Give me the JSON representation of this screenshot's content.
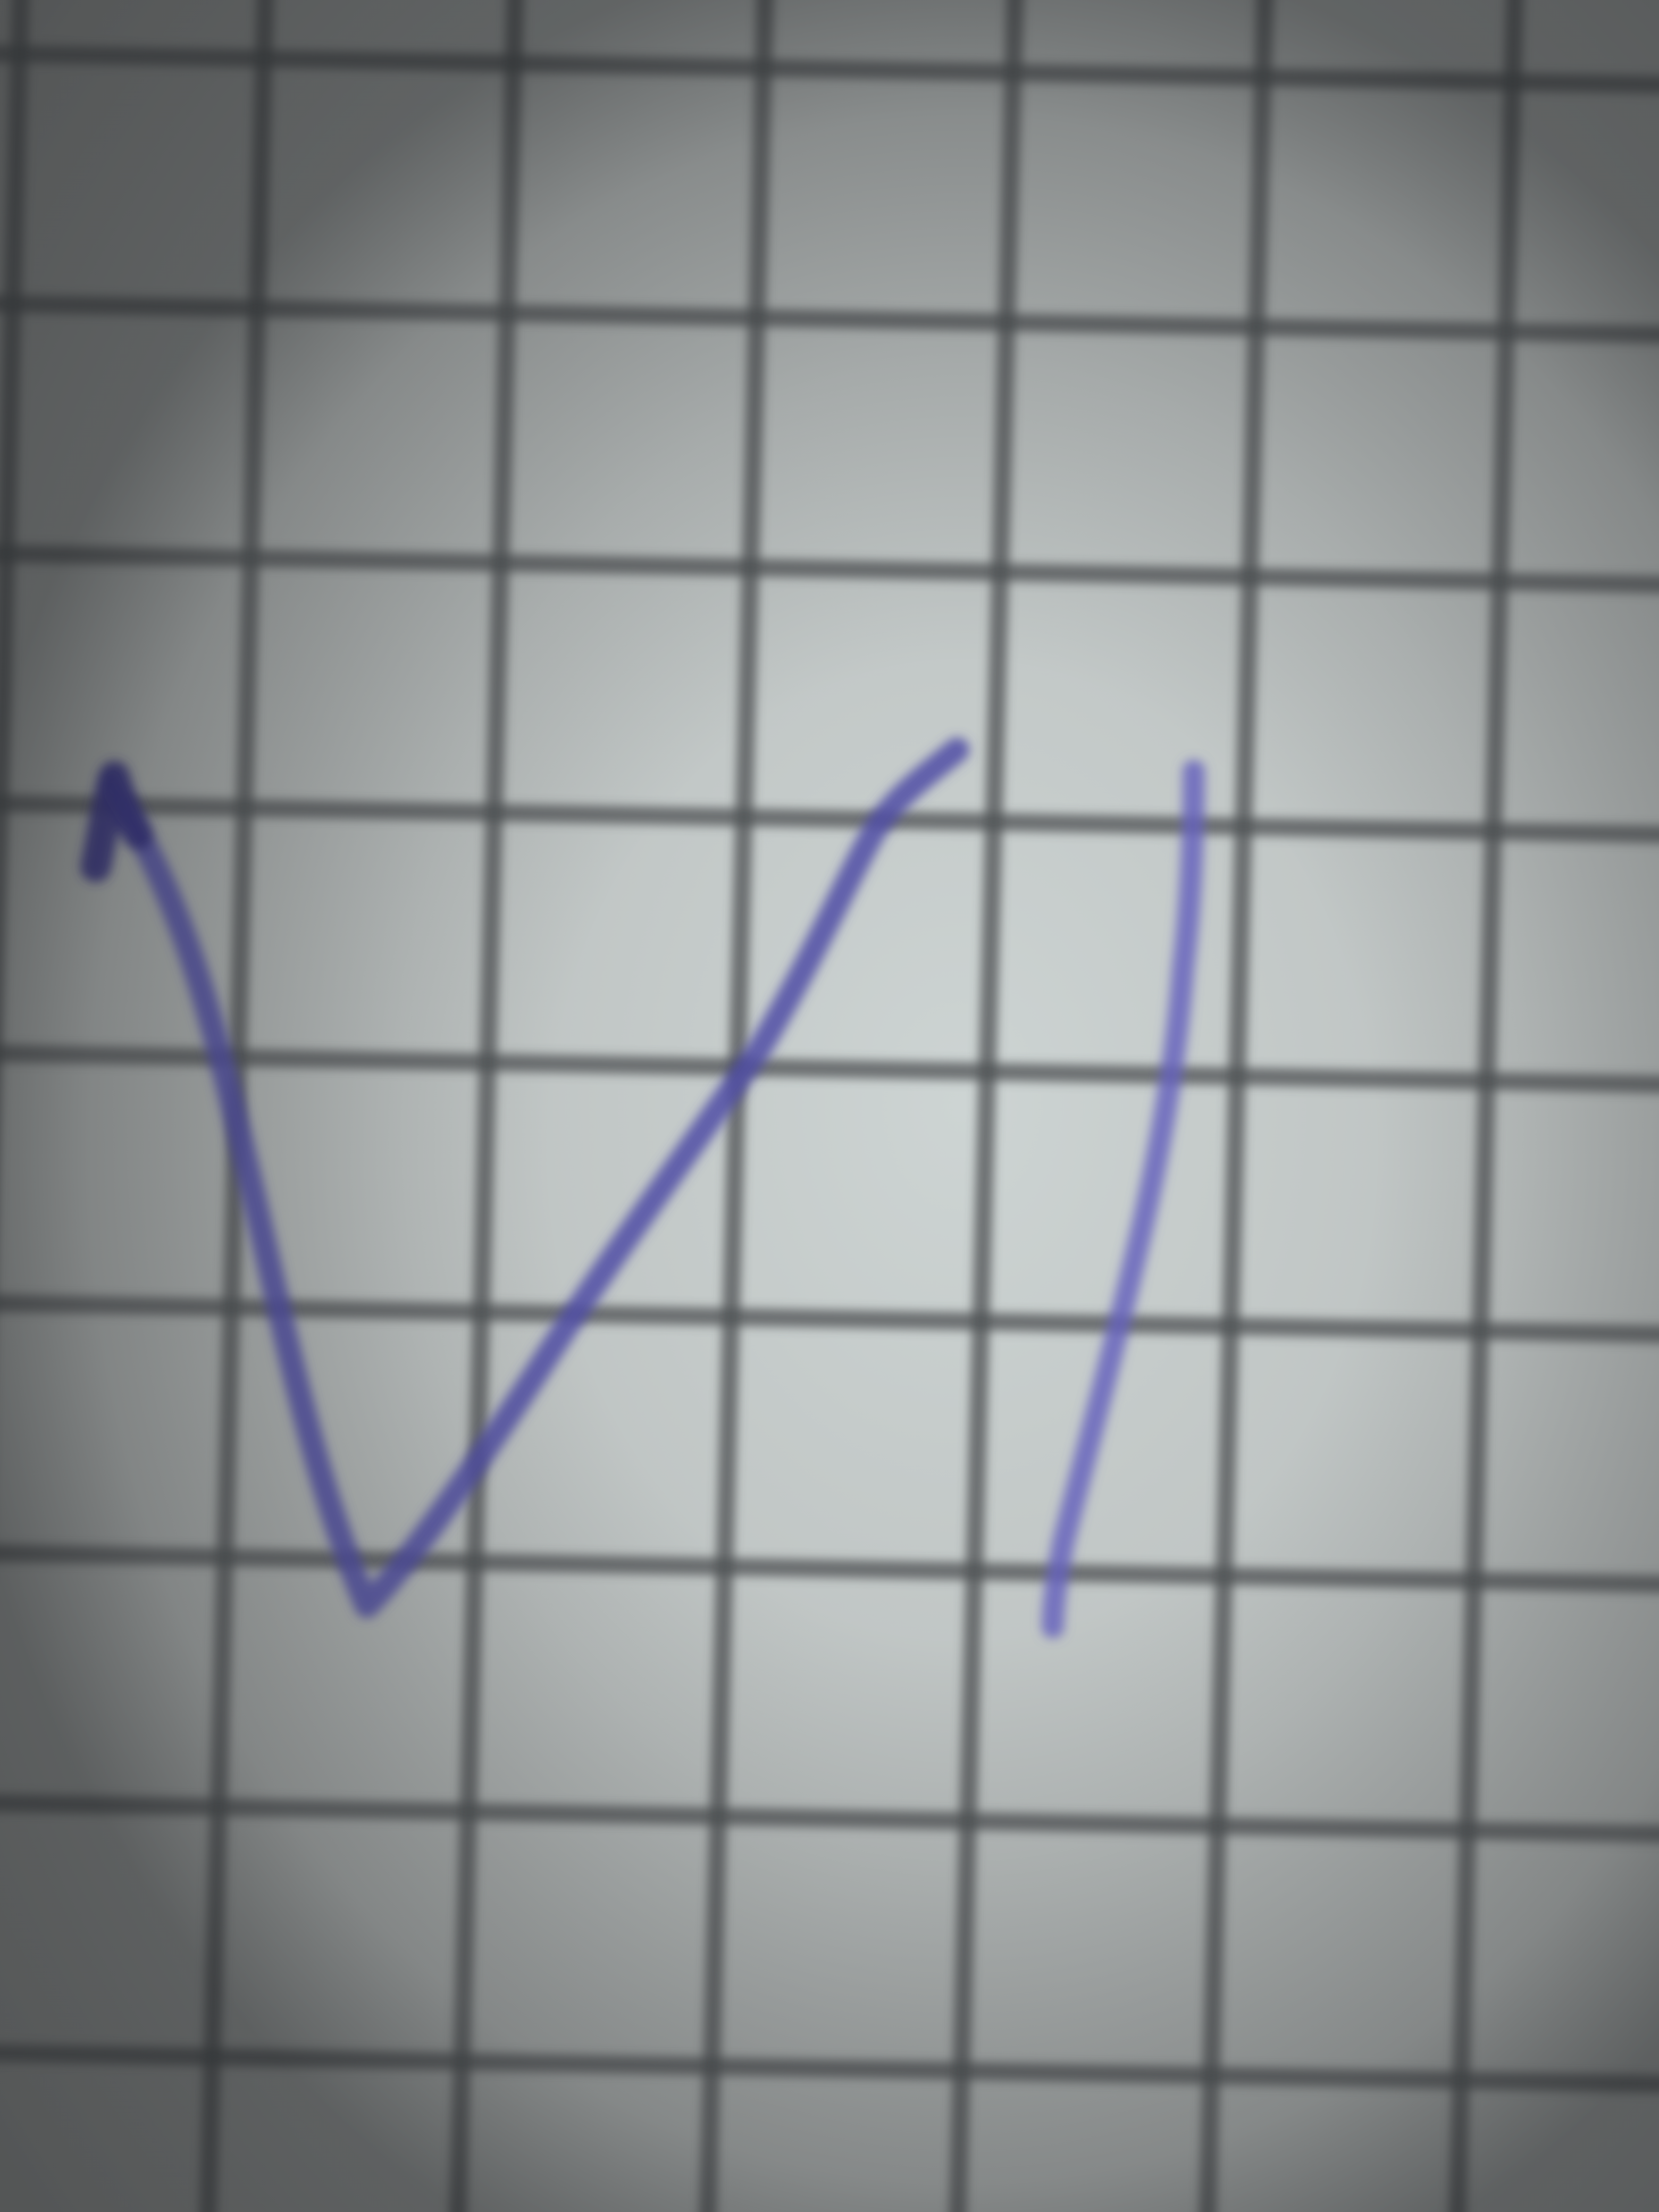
{
  "scene": {
    "subject": "handwritten-mark-on-grid-paper",
    "handwriting": "VI",
    "colors": {
      "paper_center": "#c9d0cf",
      "paper_edge": "#8c8e8d",
      "grid_line": "#4f5354",
      "ink": "#5a57b0",
      "ink_dark": "#36337f"
    }
  }
}
